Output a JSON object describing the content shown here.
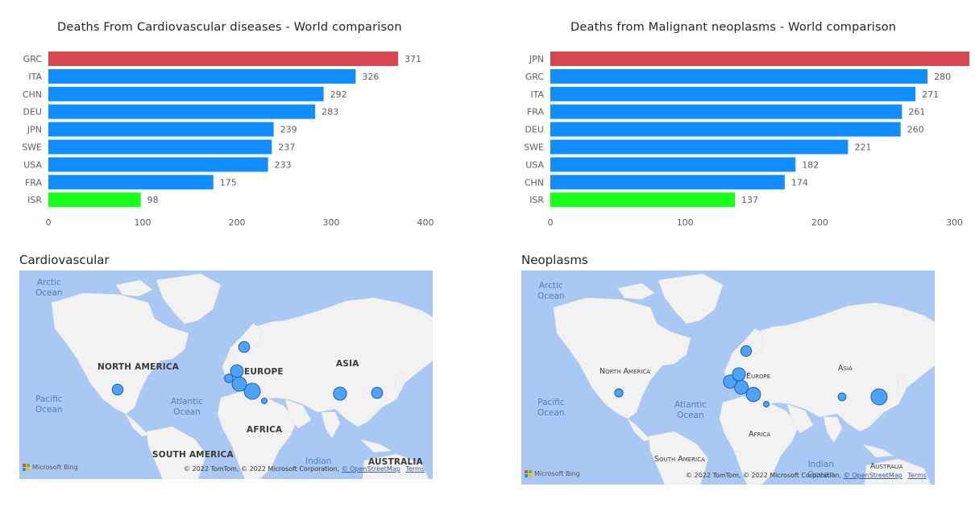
{
  "chart_data": [
    {
      "type": "bar",
      "orientation": "horizontal",
      "title": "Deaths From Cardiovascular diseases - World comparison",
      "categories": [
        "GRC",
        "ITA",
        "CHN",
        "DEU",
        "JPN",
        "SWE",
        "USA",
        "FRA",
        "ISR"
      ],
      "values": [
        371,
        326,
        292,
        283,
        239,
        237,
        233,
        175,
        98
      ],
      "colors": [
        "#d64550",
        "#118dff",
        "#118dff",
        "#118dff",
        "#118dff",
        "#118dff",
        "#118dff",
        "#118dff",
        "#1aff1a"
      ],
      "xlim": [
        0,
        400
      ],
      "xticks": [
        0,
        100,
        200,
        300,
        400
      ],
      "data_labels": true,
      "grid": false
    },
    {
      "type": "bar",
      "orientation": "horizontal",
      "title": "Deaths from Malignant neoplasms - World comparison",
      "categories": [
        "JPN",
        "GRC",
        "ITA",
        "FRA",
        "DEU",
        "SWE",
        "USA",
        "CHN",
        "ISR"
      ],
      "values": [
        311,
        280,
        271,
        261,
        260,
        221,
        182,
        174,
        137
      ],
      "colors": [
        "#d64550",
        "#118dff",
        "#118dff",
        "#118dff",
        "#118dff",
        "#118dff",
        "#118dff",
        "#118dff",
        "#1aff1a"
      ],
      "xlim": [
        0,
        320
      ],
      "xticks": [
        0,
        100,
        200,
        300
      ],
      "data_labels": true,
      "grid": false
    }
  ],
  "maps": [
    {
      "title": "Cardiovascular",
      "labels": {
        "arctic": "Arctic\nOcean",
        "pacific": "Pacific\nOcean",
        "atlantic": "Atlantic\nOcean",
        "indian": "Indian",
        "north_america": "NORTH AMERICA",
        "europe": "EUROPE",
        "asia": "ASIA",
        "africa": "AFRICA",
        "south_america": "SOUTH AMERICA",
        "australia": "AUSTRALIA"
      },
      "copyright": "© 2022 TomTom, © 2022 Microsoft Corporation,",
      "osm_link": "© OpenStreetMap",
      "terms_link": "Terms",
      "bing_logo": "Microsoft Bing"
    },
    {
      "title": "Neoplasms",
      "labels": {
        "arctic": "Arctic\nOcean",
        "pacific": "Pacific\nOcean",
        "atlantic": "Atlantic\nOcean",
        "indian": "Indian\nOcean",
        "north_america": "North America",
        "europe": "Europe",
        "asia": "Asia",
        "africa": "Africa",
        "south_america": "South America",
        "australia": "Australia"
      },
      "copyright": "© 2022 TomTom, © 2022 Microsoft Corporation,",
      "osm_link": "© OpenStreetMap",
      "terms_link": "Terms",
      "bing_logo": "Microsoft Bing"
    }
  ],
  "colors": {
    "bar_default": "#118dff",
    "bar_highlight_max": "#d64550",
    "bar_highlight_min": "#1aff1a",
    "bubble_fill": "#4fa3f7",
    "bubble_stroke": "#1a5fb4",
    "water": "#a9c8f4",
    "land": "#f2f2f2"
  }
}
